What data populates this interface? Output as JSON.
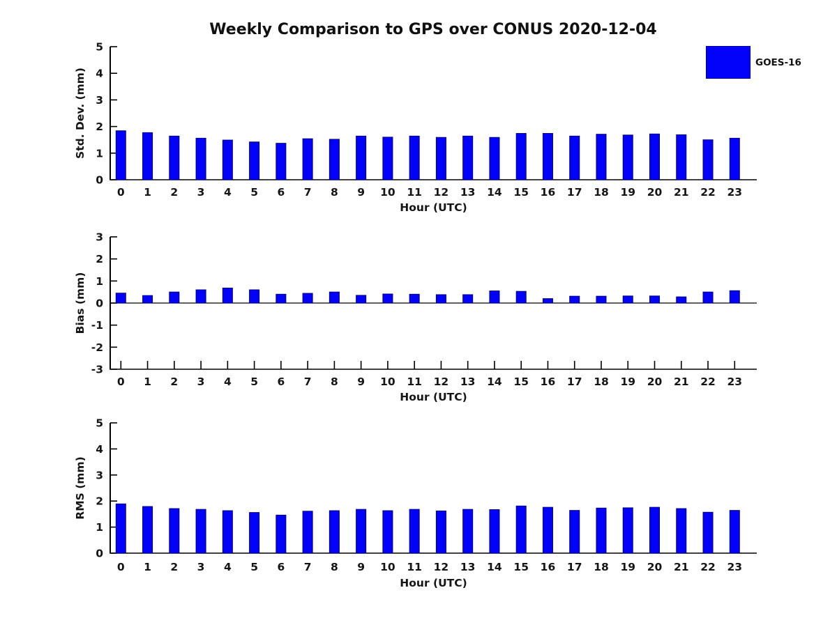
{
  "figure": {
    "title": "Weekly Comparison to GPS over CONUS 2020-12-04",
    "background_color": "#ffffff",
    "text_color": "#151515",
    "legend": {
      "label": "GOES-16",
      "swatch_color": "#0202fa",
      "position": "top-right-outside"
    }
  },
  "chart_data": [
    {
      "type": "bar",
      "title": "",
      "ylabel": "Std. Dev. (mm)",
      "xlabel": "Hour (UTC)",
      "ylim": [
        0,
        5
      ],
      "yticks": [
        0,
        1,
        2,
        3,
        4,
        5
      ],
      "grid": false,
      "bar_color": "#0202fa",
      "bar_edge_color": "#000080",
      "categories": [
        "0",
        "1",
        "2",
        "3",
        "4",
        "5",
        "6",
        "7",
        "8",
        "9",
        "10",
        "11",
        "12",
        "13",
        "14",
        "15",
        "16",
        "17",
        "18",
        "19",
        "20",
        "21",
        "22",
        "23"
      ],
      "series": [
        {
          "name": "GOES-16",
          "values": [
            1.84,
            1.77,
            1.64,
            1.56,
            1.49,
            1.42,
            1.37,
            1.54,
            1.52,
            1.64,
            1.6,
            1.64,
            1.59,
            1.64,
            1.59,
            1.74,
            1.74,
            1.64,
            1.71,
            1.68,
            1.72,
            1.69,
            1.5,
            1.56
          ]
        }
      ]
    },
    {
      "type": "bar",
      "title": "",
      "ylabel": "Bias (mm)",
      "xlabel": "Hour (UTC)",
      "ylim": [
        -3,
        3
      ],
      "yticks": [
        3,
        2,
        1,
        0,
        -1,
        -2,
        -3
      ],
      "grid": false,
      "bar_color": "#0202fa",
      "bar_edge_color": "#000080",
      "categories": [
        "0",
        "1",
        "2",
        "3",
        "4",
        "5",
        "6",
        "7",
        "8",
        "9",
        "10",
        "11",
        "12",
        "13",
        "14",
        "15",
        "16",
        "17",
        "18",
        "19",
        "20",
        "21",
        "22",
        "23"
      ],
      "series": [
        {
          "name": "GOES-16",
          "values": [
            0.45,
            0.34,
            0.5,
            0.6,
            0.68,
            0.6,
            0.4,
            0.44,
            0.5,
            0.35,
            0.41,
            0.4,
            0.38,
            0.38,
            0.55,
            0.53,
            0.2,
            0.31,
            0.31,
            0.32,
            0.32,
            0.28,
            0.5,
            0.56
          ]
        }
      ]
    },
    {
      "type": "bar",
      "title": "",
      "ylabel": "RMS (mm)",
      "xlabel": "Hour (UTC)",
      "ylim": [
        0,
        5
      ],
      "yticks": [
        0,
        1,
        2,
        3,
        4,
        5
      ],
      "grid": false,
      "bar_color": "#0202fa",
      "bar_edge_color": "#000080",
      "categories": [
        "0",
        "1",
        "2",
        "3",
        "4",
        "5",
        "6",
        "7",
        "8",
        "9",
        "10",
        "11",
        "12",
        "13",
        "14",
        "15",
        "16",
        "17",
        "18",
        "19",
        "20",
        "21",
        "22",
        "23"
      ],
      "series": [
        {
          "name": "GOES-16",
          "values": [
            1.89,
            1.79,
            1.71,
            1.68,
            1.63,
            1.56,
            1.46,
            1.61,
            1.63,
            1.68,
            1.63,
            1.68,
            1.62,
            1.68,
            1.67,
            1.81,
            1.76,
            1.64,
            1.73,
            1.74,
            1.76,
            1.71,
            1.57,
            1.64
          ]
        }
      ]
    }
  ]
}
